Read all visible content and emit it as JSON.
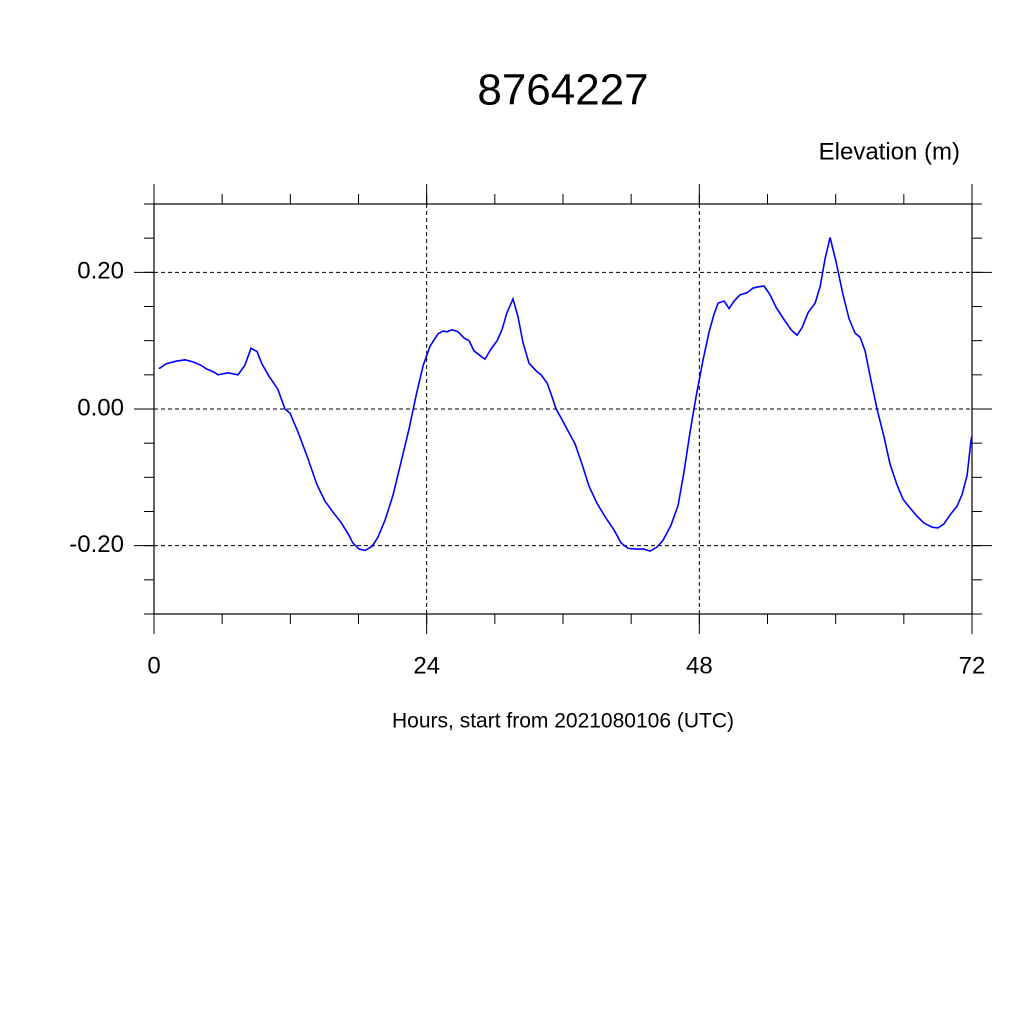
{
  "chart_data": {
    "type": "line",
    "title": "8764227",
    "subtitle": "Elevation (m)",
    "x_label": "Hours, start from 2021080106 (UTC)",
    "color": "#0000ff",
    "grid": true,
    "xlim": [
      0,
      72
    ],
    "xticks": [
      0,
      24,
      48,
      72
    ],
    "ylim": [
      -0.3,
      0.3
    ],
    "yticks": [
      {
        "value": -0.2,
        "label": "-0.20"
      },
      {
        "value": 0,
        "label": "0.00"
      },
      {
        "value": 0.2,
        "label": "0.20"
      }
    ],
    "x": [
      0.44,
      1.06,
      1.94,
      2.73,
      3.43,
      4.14,
      4.58,
      5.28,
      5.63,
      6.51,
      7.39,
      8.0,
      8.54,
      9.07,
      9.5,
      10.12,
      10.9,
      11.53,
      11.97,
      12.68,
      13.47,
      14.35,
      15.05,
      15.76,
      16.46,
      17.17,
      17.5,
      18.05,
      18.57,
      19.19,
      19.7,
      20.33,
      21.04,
      21.74,
      22.45,
      23.06,
      23.68,
      24.3,
      25.0,
      25.44,
      25.8,
      26.23,
      26.76,
      27.29,
      27.73,
      28.17,
      28.87,
      29.14,
      29.67,
      30.2,
      30.63,
      31.07,
      31.6,
      32.04,
      32.48,
      33.01,
      33.63,
      34.07,
      34.6,
      34.95,
      35.39,
      35.83,
      36.44,
      37.06,
      37.68,
      38.29,
      38.99,
      39.79,
      40.49,
      41.11,
      41.73,
      42.43,
      43.13,
      43.66,
      44.28,
      44.81,
      45.51,
      46.13,
      46.65,
      47.18,
      47.71,
      48.33,
      48.86,
      49.3,
      49.65,
      50.18,
      50.62,
      51.06,
      51.58,
      52.2,
      52.73,
      53.26,
      53.7,
      54.23,
      54.75,
      55.37,
      56.07,
      56.6,
      57.04,
      57.57,
      58.19,
      58.63,
      59.07,
      59.51,
      60.04,
      60.65,
      61.18,
      61.71,
      62.15,
      62.59,
      63.12,
      63.64,
      64.26,
      64.79,
      65.4,
      65.93,
      66.55,
      67.17,
      67.78,
      68.49,
      69.01,
      69.54,
      70.07,
      70.69,
      71.13,
      71.57,
      71.92,
      72
    ],
    "values": [
      0.059,
      0.066,
      0.07,
      0.072,
      0.069,
      0.064,
      0.059,
      0.054,
      0.05,
      0.053,
      0.05,
      0.064,
      0.089,
      0.084,
      0.066,
      0.048,
      0.029,
      0.0,
      -0.006,
      -0.034,
      -0.069,
      -0.111,
      -0.135,
      -0.151,
      -0.166,
      -0.185,
      -0.196,
      -0.205,
      -0.207,
      -0.201,
      -0.188,
      -0.163,
      -0.126,
      -0.078,
      -0.029,
      0.019,
      0.063,
      0.092,
      0.11,
      0.114,
      0.113,
      0.116,
      0.113,
      0.104,
      0.1,
      0.085,
      0.076,
      0.073,
      0.088,
      0.1,
      0.116,
      0.141,
      0.161,
      0.135,
      0.097,
      0.067,
      0.056,
      0.05,
      0.038,
      0.022,
      0.0,
      -0.013,
      -0.032,
      -0.051,
      -0.081,
      -0.113,
      -0.138,
      -0.16,
      -0.177,
      -0.196,
      -0.204,
      -0.205,
      -0.205,
      -0.208,
      -0.202,
      -0.192,
      -0.17,
      -0.141,
      -0.092,
      -0.034,
      0.018,
      0.072,
      0.113,
      0.139,
      0.155,
      0.158,
      0.147,
      0.158,
      0.167,
      0.17,
      0.177,
      0.179,
      0.18,
      0.167,
      0.149,
      0.133,
      0.116,
      0.108,
      0.119,
      0.141,
      0.155,
      0.179,
      0.22,
      0.251,
      0.215,
      0.167,
      0.132,
      0.111,
      0.105,
      0.085,
      0.041,
      0.0,
      -0.041,
      -0.081,
      -0.111,
      -0.132,
      -0.145,
      -0.157,
      -0.167,
      -0.173,
      -0.174,
      -0.168,
      -0.155,
      -0.142,
      -0.125,
      -0.097,
      -0.045,
      -0.04
    ]
  }
}
